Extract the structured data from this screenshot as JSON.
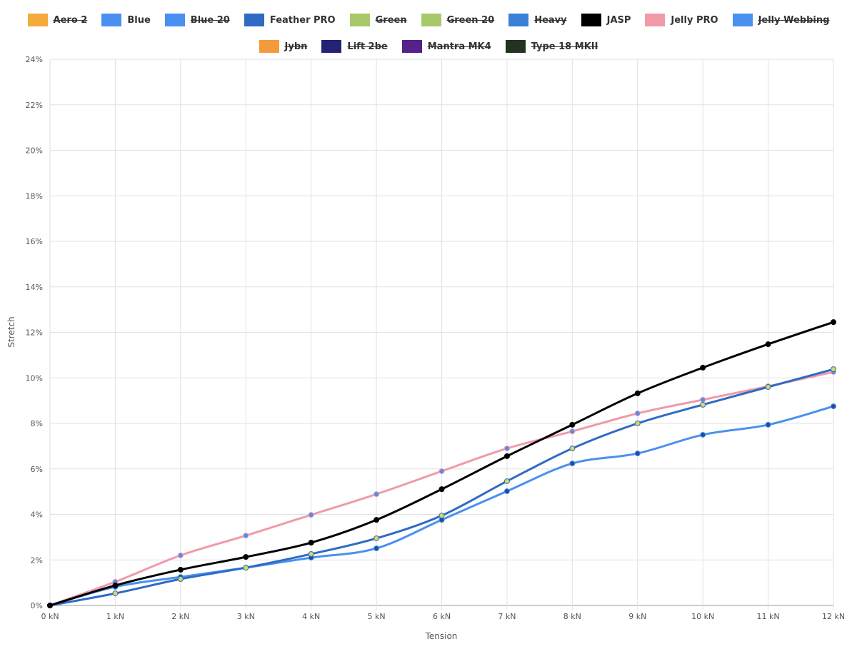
{
  "chart_data": {
    "type": "line",
    "xlabel": "Tension",
    "ylabel": "Stretch",
    "x": [
      0,
      1,
      2,
      3,
      4,
      5,
      6,
      7,
      8,
      9,
      10,
      11,
      12
    ],
    "x_tick_labels": [
      "0 kN",
      "1 kN",
      "2 kN",
      "3 kN",
      "4 kN",
      "5 kN",
      "6 kN",
      "7 kN",
      "8 kN",
      "9 kN",
      "10 kN",
      "11 kN",
      "12 kN"
    ],
    "y_tick_labels": [
      "0%",
      "2%",
      "4%",
      "6%",
      "8%",
      "10%",
      "12%",
      "14%",
      "16%",
      "18%",
      "20%",
      "22%",
      "24%"
    ],
    "ylim": [
      0,
      24
    ],
    "xlim": [
      0,
      12
    ],
    "grid": true,
    "legend_placement": "top",
    "legend": [
      {
        "name": "Aero 2",
        "color": "#f4ab3c",
        "hidden": true
      },
      {
        "name": "Blue",
        "color": "#4a90f0",
        "hidden": false
      },
      {
        "name": "Blue 20",
        "color": "#4a90f0",
        "hidden": true
      },
      {
        "name": "Feather PRO",
        "color": "#2f6bc4",
        "hidden": false
      },
      {
        "name": "Green",
        "color": "#a8c96a",
        "hidden": true
      },
      {
        "name": "Green 20",
        "color": "#a8c96a",
        "hidden": true
      },
      {
        "name": "Heavy",
        "color": "#3a7fd8",
        "hidden": true
      },
      {
        "name": "JASP",
        "color": "#000000",
        "hidden": false
      },
      {
        "name": "Jelly PRO",
        "color": "#f09aa8",
        "hidden": false
      },
      {
        "name": "Jelly Webbing",
        "color": "#4a90f0",
        "hidden": true
      },
      {
        "name": "Jybn",
        "color": "#f39a3a",
        "hidden": true
      },
      {
        "name": "Lift 2be",
        "color": "#232275",
        "hidden": true
      },
      {
        "name": "Mantra MK4",
        "color": "#55228a",
        "hidden": true
      },
      {
        "name": "Type 18 MKII",
        "color": "#223322",
        "hidden": true
      }
    ],
    "series": [
      {
        "name": "Jelly PRO",
        "color": "#f09aa8",
        "marker": "#4a90f0",
        "values": [
          0,
          1.04,
          2.2,
          3.07,
          3.98,
          4.89,
          5.9,
          6.9,
          7.65,
          8.44,
          9.04,
          9.63,
          10.26
        ]
      },
      {
        "name": "Blue",
        "color": "#4a90f0",
        "marker": "#1f4f9a",
        "values": [
          0,
          0.82,
          1.25,
          1.66,
          2.1,
          2.51,
          3.76,
          5.02,
          6.24,
          6.68,
          7.5,
          7.94,
          8.75
        ]
      },
      {
        "name": "Feather PRO",
        "color": "#2f6bc4",
        "marker": "#d8d860",
        "values": [
          0,
          0.53,
          1.16,
          1.66,
          2.26,
          2.95,
          3.95,
          5.46,
          6.9,
          8.0,
          8.82,
          9.6,
          10.38
        ]
      },
      {
        "name": "JASP",
        "color": "#000000",
        "marker": "#000000",
        "values": [
          0,
          0.88,
          1.57,
          2.13,
          2.76,
          3.76,
          5.11,
          6.56,
          7.94,
          9.32,
          10.45,
          11.48,
          12.45
        ]
      }
    ]
  }
}
